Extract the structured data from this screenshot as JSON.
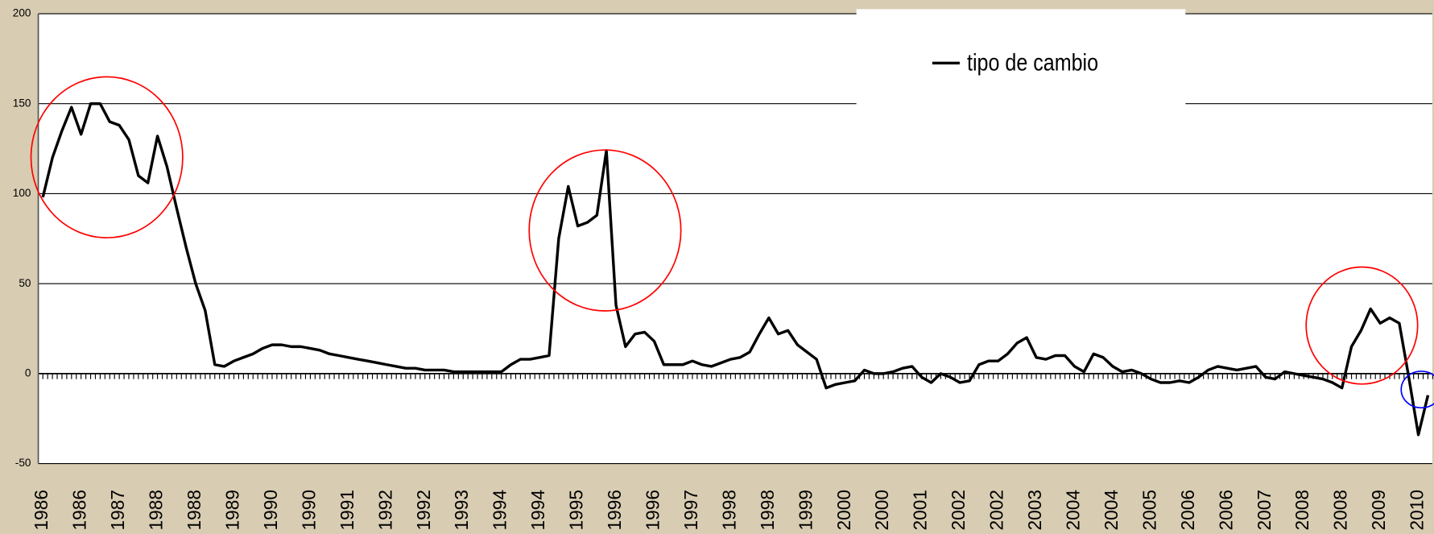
{
  "chart_data": {
    "type": "line",
    "categories": [
      "1986",
      null,
      null,
      null,
      "1986",
      null,
      null,
      null,
      "1987",
      null,
      null,
      null,
      "1988",
      null,
      null,
      null,
      "1988",
      null,
      null,
      null,
      "1989",
      null,
      null,
      null,
      "1990",
      null,
      null,
      null,
      "1990",
      null,
      null,
      null,
      "1991",
      null,
      null,
      null,
      "1992",
      null,
      null,
      null,
      "1992",
      null,
      null,
      null,
      "1993",
      null,
      null,
      null,
      "1994",
      null,
      null,
      null,
      "1994",
      null,
      null,
      null,
      "1995",
      null,
      null,
      null,
      "1996",
      null,
      null,
      null,
      "1996",
      null,
      null,
      null,
      "1997",
      null,
      null,
      null,
      "1998",
      null,
      null,
      null,
      "1998",
      null,
      null,
      null,
      "1999",
      null,
      null,
      null,
      "2000",
      null,
      null,
      null,
      "2000",
      null,
      null,
      null,
      "2001",
      null,
      null,
      null,
      "2002",
      null,
      null,
      null,
      "2002",
      null,
      null,
      null,
      "2003",
      null,
      null,
      null,
      "2004",
      null,
      null,
      null,
      "2004",
      null,
      null,
      null,
      "2005",
      null,
      null,
      null,
      "2006",
      null,
      null,
      null,
      "2006",
      null,
      null,
      null,
      "2007",
      null,
      null,
      null,
      "2008",
      null,
      null,
      null,
      "2008",
      null,
      null,
      null,
      "2009",
      null,
      null,
      null,
      "2010",
      null
    ],
    "series": [
      {
        "name": "tipo de cambio",
        "color": "#000000",
        "values": [
          98,
          120,
          135,
          148,
          133,
          150,
          150,
          140,
          138,
          130,
          110,
          106,
          132,
          115,
          92,
          70,
          50,
          35,
          5,
          4,
          7,
          9,
          11,
          14,
          16,
          16,
          15,
          15,
          14,
          13,
          11,
          10,
          9,
          8,
          7,
          6,
          5,
          4,
          3,
          3,
          2,
          2,
          2,
          1,
          1,
          1,
          1,
          1,
          1,
          5,
          8,
          8,
          9,
          10,
          75,
          104,
          82,
          84,
          88,
          124,
          38,
          15,
          22,
          23,
          18,
          5,
          5,
          5,
          7,
          5,
          4,
          6,
          8,
          9,
          12,
          22,
          31,
          22,
          24,
          16,
          12,
          8,
          -8,
          -6,
          -5,
          -4,
          2,
          0,
          0,
          1,
          3,
          4,
          -2,
          -5,
          0,
          -2,
          -5,
          -4,
          5,
          7,
          7,
          11,
          17,
          20,
          9,
          8,
          10,
          10,
          4,
          1,
          11,
          9,
          4,
          1,
          2,
          0,
          -3,
          -5,
          -5,
          -4,
          -5,
          -2,
          2,
          4,
          3,
          2,
          3,
          4,
          -2,
          -3,
          1,
          0,
          -1,
          -2,
          -3,
          -5,
          -8,
          15,
          24,
          36,
          28,
          31,
          28,
          -2,
          -34,
          -12
        ]
      }
    ],
    "ylim": [
      -50,
      200
    ],
    "yticks": [
      -50,
      0,
      50,
      100,
      150,
      200
    ],
    "grid": true,
    "legend": "top-right"
  }
}
